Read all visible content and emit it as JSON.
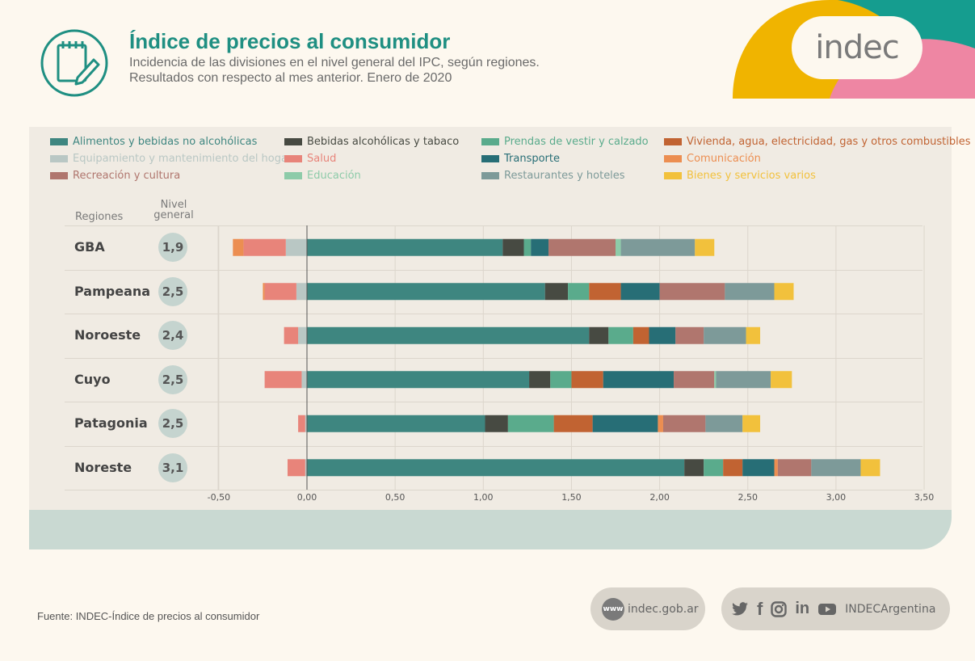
{
  "header": {
    "title": "Índice de precios al consumidor",
    "subtitle_line1": "Incidencia de las divisiones en el nivel general del IPC, según regiones.",
    "subtitle_line2": "Resultados con respecto al mes anterior. Enero de 2020",
    "brand": "indec"
  },
  "colors": {
    "teal_title": "#1f8f82",
    "brand_yellow": "#f0b400",
    "brand_teal": "#159d8f",
    "brand_pink": "#ee86a3"
  },
  "columns": {
    "regions": "Regiones",
    "level_line1": "Nivel",
    "level_line2": "general"
  },
  "chart_data": {
    "type": "bar",
    "orientation": "horizontal",
    "stacked": true,
    "xlim": [
      -0.5,
      3.5
    ],
    "x_ticks": [
      "-0,50",
      "0,00",
      "0,50",
      "1,00",
      "1,50",
      "2,00",
      "2,50",
      "3,00",
      "3,50"
    ],
    "x_tick_values": [
      -0.5,
      0,
      0.5,
      1.0,
      1.5,
      2.0,
      2.5,
      3.0,
      3.5
    ],
    "grid": true,
    "legend_position": "top",
    "categories": [
      "GBA",
      "Pampeana",
      "Noroeste",
      "Cuyo",
      "Patagonia",
      "Noreste"
    ],
    "nivel_general": [
      "1,9",
      "2,5",
      "2,4",
      "2,5",
      "2,5",
      "3,1"
    ],
    "series": [
      {
        "name": "Alimentos y bebidas no alcohólicas",
        "color": "#3e8680",
        "values": [
          1.11,
          1.35,
          1.6,
          1.26,
          1.01,
          2.14
        ]
      },
      {
        "name": "Bebidas alcohólicas y tabaco",
        "color": "#474a42",
        "values": [
          0.12,
          0.13,
          0.11,
          0.12,
          0.13,
          0.11
        ]
      },
      {
        "name": "Prendas de vestir y calzado",
        "color": "#5aab8c",
        "values": [
          0.04,
          0.12,
          0.14,
          0.12,
          0.26,
          0.11
        ]
      },
      {
        "name": "Vivienda, agua, electricidad, gas y otros combustibles",
        "color": "#c16332",
        "values": [
          0.0,
          0.18,
          0.09,
          0.18,
          0.22,
          0.11
        ]
      },
      {
        "name": "Equipamiento y mantenimiento del hogar",
        "color": "#b9c7c4",
        "values": [
          -0.12,
          -0.06,
          -0.05,
          -0.03,
          -0.01,
          -0.01
        ]
      },
      {
        "name": "Salud",
        "color": "#e8847a",
        "values": [
          -0.24,
          -0.18,
          -0.08,
          -0.21,
          -0.04,
          -0.1
        ]
      },
      {
        "name": "Transporte",
        "color": "#276e76",
        "values": [
          0.1,
          0.22,
          0.15,
          0.4,
          0.37,
          0.18
        ]
      },
      {
        "name": "Comunicación",
        "color": "#ec8e51",
        "values": [
          -0.06,
          -0.01,
          0.0,
          0.0,
          0.03,
          0.02
        ]
      },
      {
        "name": "Recreación y cultura",
        "color": "#b0766e",
        "values": [
          0.38,
          0.37,
          0.16,
          0.23,
          0.24,
          0.19
        ]
      },
      {
        "name": "Educación",
        "color": "#8dcba9",
        "values": [
          0.03,
          0.0,
          0.0,
          0.01,
          0.0,
          0.0
        ]
      },
      {
        "name": "Restaurantes y hoteles",
        "color": "#7d9a99",
        "values": [
          0.42,
          0.28,
          0.24,
          0.31,
          0.21,
          0.28
        ]
      },
      {
        "name": "Bienes y servicios varios",
        "color": "#f2c13c",
        "values": [
          0.11,
          0.11,
          0.08,
          0.12,
          0.1,
          0.11
        ]
      }
    ]
  },
  "footer": {
    "source": "Fuente: INDEC-Índice de precios al consumidor",
    "www_badge": "www",
    "website": "indec.gob.ar",
    "social_handle": "INDECArgentina",
    "social_icons": [
      "twitter-icon",
      "facebook-icon",
      "instagram-icon",
      "linkedin-icon",
      "youtube-icon"
    ]
  }
}
